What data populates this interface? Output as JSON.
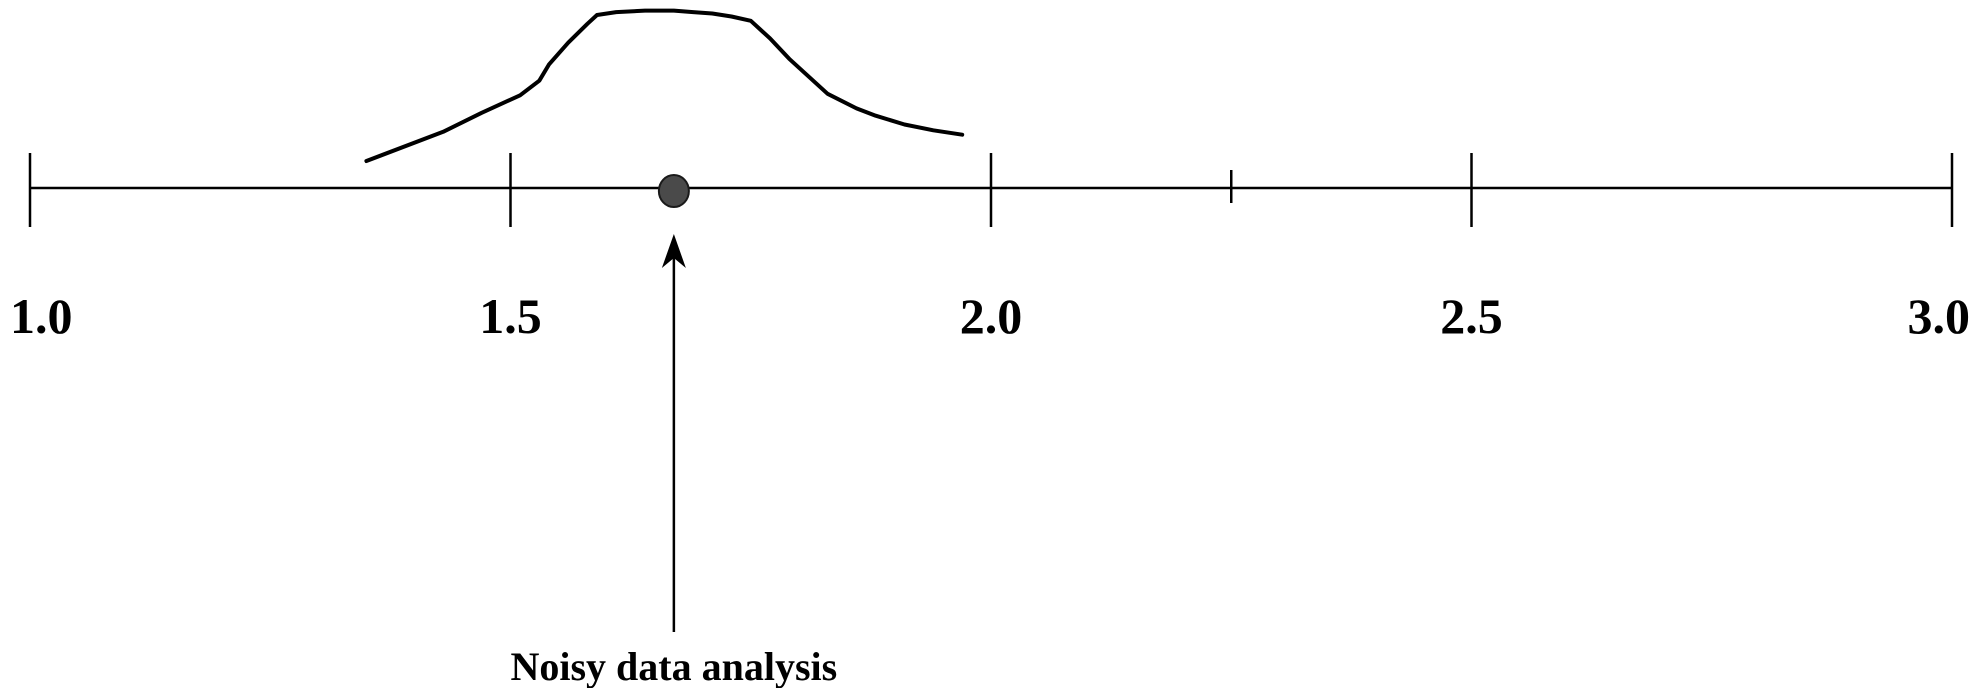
{
  "chart_data": {
    "type": "line",
    "xlim": [
      1.0,
      3.0
    ],
    "major_ticks": [
      1.0,
      1.5,
      2.0,
      2.5,
      3.0
    ],
    "minor_ticks": [
      2.25
    ],
    "tick_labels": [
      "1.0",
      "1.5",
      "2.0",
      "2.5",
      "3.0"
    ],
    "marker": {
      "x": 1.67
    },
    "annotation": {
      "text": "Noisy data analysis",
      "x": 1.67
    },
    "distribution_curve": {
      "x": [
        1.35,
        1.43,
        1.47,
        1.51,
        1.53,
        1.54,
        1.56,
        1.58,
        1.59,
        1.61,
        1.64,
        1.67,
        1.69,
        1.71,
        1.73,
        1.75,
        1.77,
        1.79,
        1.83,
        1.86,
        1.88,
        1.91,
        1.94,
        1.97
      ],
      "y": [
        0.0,
        0.2,
        0.33,
        0.45,
        0.55,
        0.66,
        0.81,
        0.94,
        1.0,
        1.02,
        1.03,
        1.03,
        1.02,
        1.01,
        0.99,
        0.96,
        0.84,
        0.7,
        0.46,
        0.36,
        0.31,
        0.25,
        0.21,
        0.18
      ]
    },
    "grid": false,
    "colors": {
      "axis": "#000000",
      "curve": "#000000",
      "marker_fill": "#4a4a4a",
      "marker_stroke": "#1a1a1a"
    }
  }
}
